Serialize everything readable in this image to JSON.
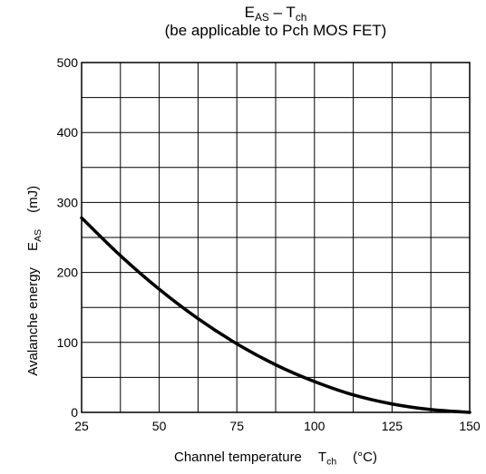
{
  "chart_data": {
    "type": "line",
    "title_line1": {
      "main": "E",
      "main_sub": "AS",
      "dash": " – ",
      "var": "T",
      "var_sub": "ch"
    },
    "title_line2": "(be applicable to Pch MOS FET)",
    "xlabel": {
      "text": "Channel temperature",
      "symbol": "T",
      "symbol_sub": "ch",
      "unit": "(°C)"
    },
    "ylabel": {
      "text": "Avalanche energy",
      "symbol": "E",
      "symbol_sub": "AS",
      "unit": "(mJ)"
    },
    "xlim": [
      25,
      150
    ],
    "ylim": [
      0,
      500
    ],
    "x_ticks": [
      25,
      50,
      75,
      100,
      125,
      150
    ],
    "y_ticks": [
      0,
      100,
      200,
      300,
      400,
      500
    ],
    "grid": true,
    "series": [
      {
        "x": [
          25,
          37.5,
          50,
          62.5,
          75,
          87.5,
          100,
          112.5,
          125,
          137.5,
          150
        ],
        "y": [
          278,
          224,
          176,
          134,
          98,
          68,
          44,
          25,
          12,
          4,
          0
        ]
      }
    ]
  }
}
